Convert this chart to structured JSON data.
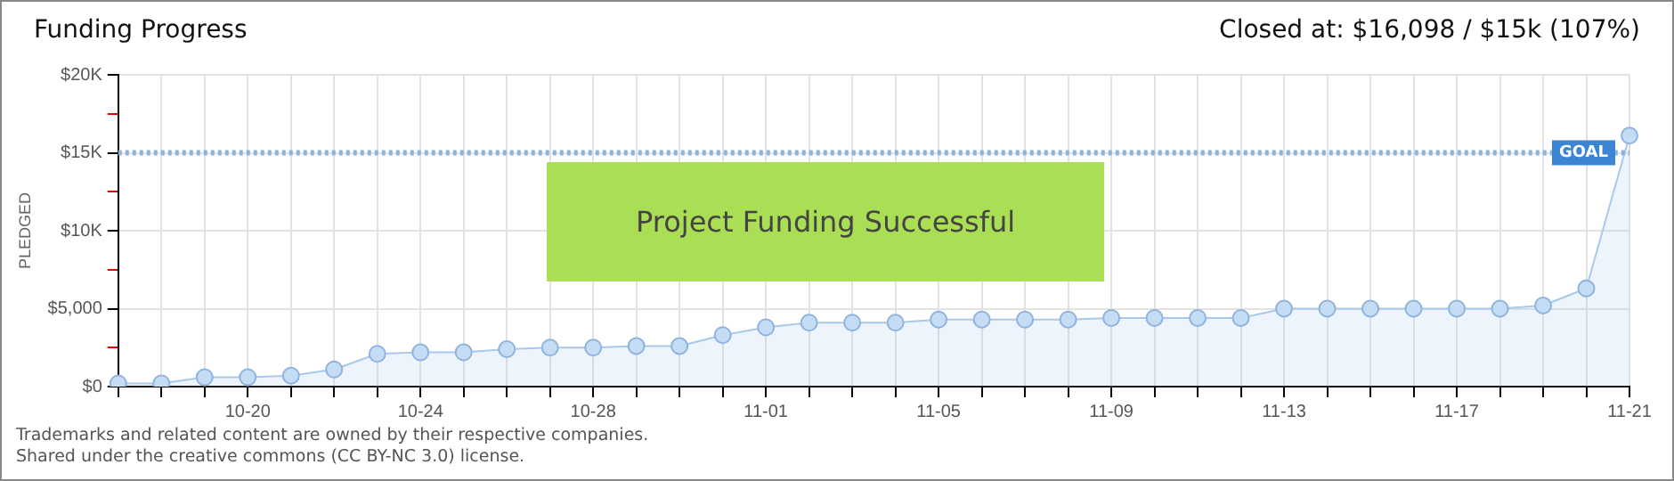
{
  "chart_data": {
    "type": "area",
    "title": "Funding Progress",
    "subtitle": "Closed at: $16,098 / $15k (107%)",
    "ylabel": "PLEDGED",
    "categories": [
      null,
      null,
      null,
      "10-20",
      null,
      null,
      null,
      "10-24",
      null,
      null,
      null,
      "10-28",
      null,
      null,
      null,
      "11-01",
      null,
      null,
      null,
      "11-05",
      null,
      null,
      null,
      "11-09",
      null,
      null,
      null,
      "11-13",
      null,
      null,
      null,
      "11-17",
      null,
      null,
      null,
      "11-21"
    ],
    "series": [
      {
        "color": "#a9c9ec",
        "values": [
          200,
          200,
          600,
          600,
          700,
          1100,
          2100,
          2200,
          2200,
          2400,
          2500,
          2500,
          2600,
          2600,
          3300,
          3800,
          4100,
          4100,
          4100,
          4300,
          4300,
          4300,
          4300,
          4400,
          4400,
          4400,
          4400,
          5000,
          5000,
          5000,
          5000,
          5000,
          5000,
          5200,
          6300,
          16098
        ]
      }
    ],
    "ylim": [
      0,
      20000
    ],
    "yticks": [
      {
        "value": 0,
        "label": "$0"
      },
      {
        "value": 2500,
        "label": null
      },
      {
        "value": 5000,
        "label": "$5,000"
      },
      {
        "value": 7500,
        "label": null
      },
      {
        "value": 10000,
        "label": "$10K"
      },
      {
        "value": 12500,
        "label": null
      },
      {
        "value": 15000,
        "label": "$15K"
      },
      {
        "value": 17500,
        "label": null
      },
      {
        "value": 20000,
        "label": "$20K"
      }
    ],
    "ref_lines": [
      {
        "axis": "y",
        "value": 15000,
        "label": "GOAL",
        "color": "#8fb3de",
        "line_style": "dotted"
      }
    ],
    "grid": true,
    "marker": "circle",
    "legend": false,
    "annotations": [
      "Project Funding Successful",
      "Trademarks and related content are owned by their respective companies.",
      "Shared under the creative commons (CC BY-NC 3.0) license."
    ]
  }
}
